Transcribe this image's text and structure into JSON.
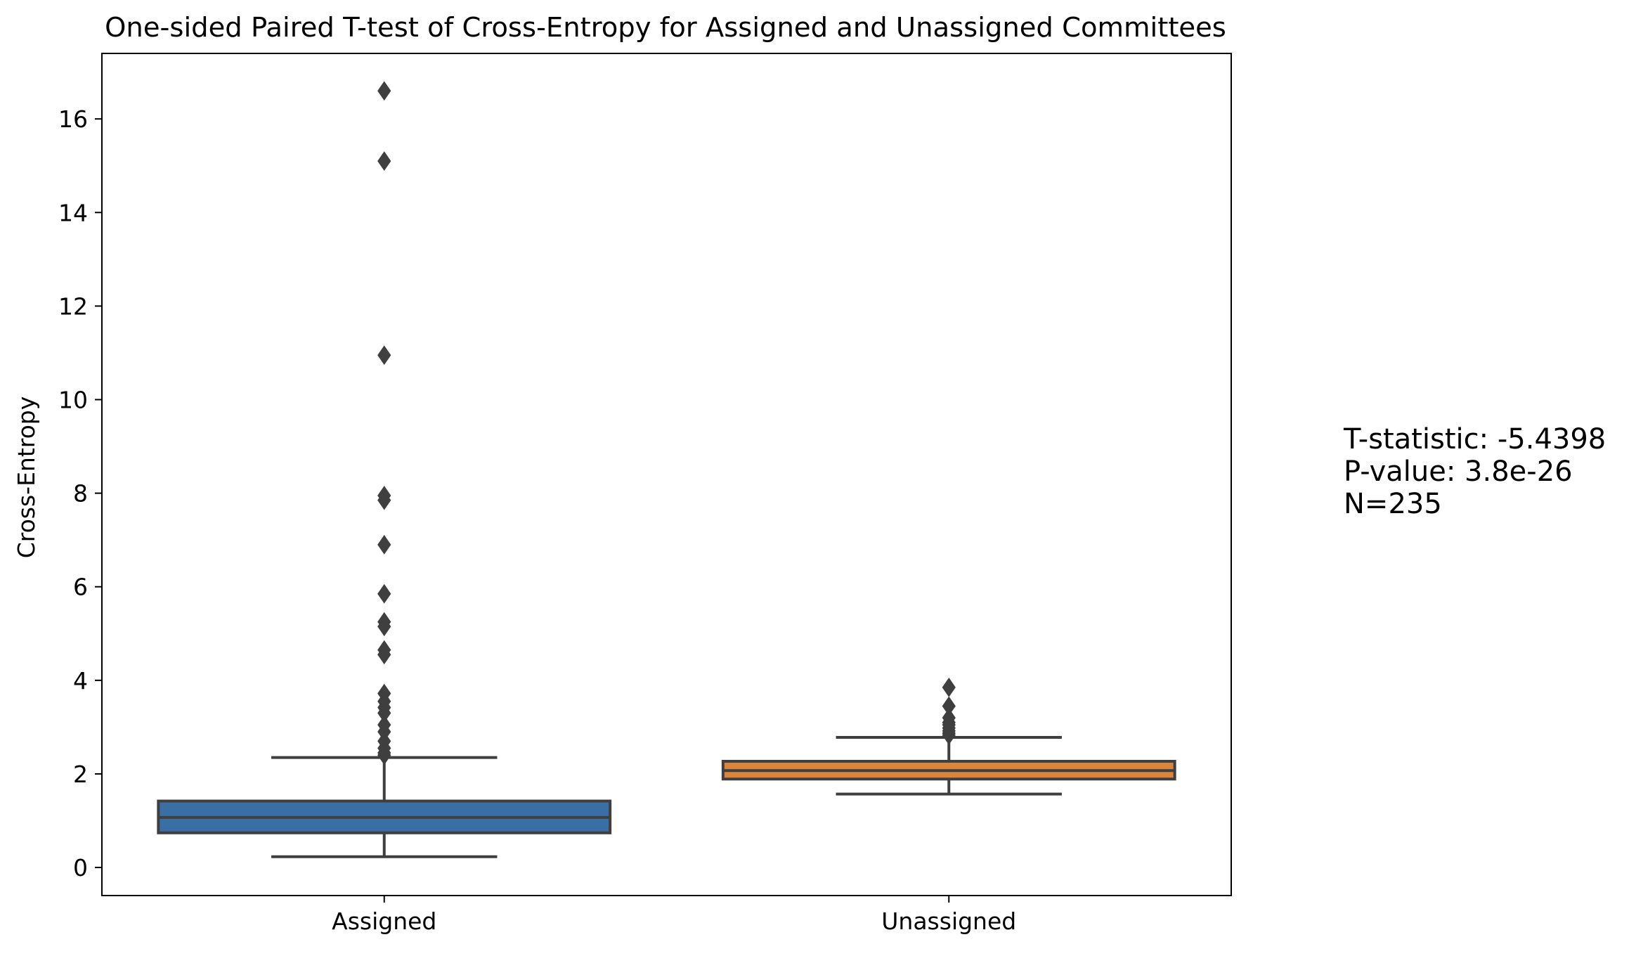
{
  "chart_data": {
    "type": "box",
    "title": "One-sided Paired T-test of Cross-Entropy for Assigned and Unassigned Committees",
    "xlabel": "",
    "ylabel": "Cross-Entropy",
    "ylim": [
      -0.6,
      17.4
    ],
    "yticks": [
      0,
      2,
      4,
      6,
      8,
      10,
      12,
      14,
      16
    ],
    "categories": [
      "Assigned",
      "Unassigned"
    ],
    "grid": false,
    "series": [
      {
        "category": "Assigned",
        "color": "#3a6fa6",
        "whisker_low": 0.23,
        "q1": 0.74,
        "median": 1.07,
        "q3": 1.42,
        "whisker_high": 2.35,
        "outliers": [
          16.6,
          15.1,
          10.95,
          7.95,
          7.85,
          6.9,
          5.85,
          5.25,
          5.15,
          4.65,
          4.55,
          3.72,
          3.55,
          3.42,
          3.3,
          3.05,
          2.9,
          2.7,
          2.55,
          2.45,
          2.4
        ]
      },
      {
        "category": "Unassigned",
        "color": "#d9853b",
        "whisker_low": 1.57,
        "q1": 1.89,
        "median": 2.07,
        "q3": 2.27,
        "whisker_high": 2.78,
        "outliers": [
          3.85,
          3.45,
          3.2,
          3.1,
          3.05,
          2.98,
          2.92,
          2.87,
          2.83
        ]
      }
    ],
    "annotation": {
      "lines": [
        "T-statistic: -5.4398",
        "P-value: 3.8e-26",
        "N=235"
      ]
    }
  }
}
